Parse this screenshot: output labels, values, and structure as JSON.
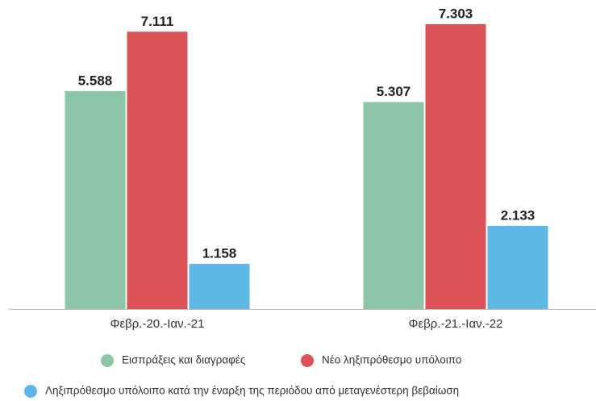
{
  "chart_data": {
    "type": "bar",
    "categories": [
      "Φεβρ.-20.-Ιαν.-21",
      "Φεβρ.-21.-Ιαν.-22"
    ],
    "series": [
      {
        "name": "Εισπράξεις και διαγραφές",
        "color": "#8dc5a8",
        "values": [
          5.588,
          5.307
        ]
      },
      {
        "name": "Νέο ληξιπρόθεσμο υπόλοιπο",
        "color": "#db5257",
        "values": [
          7.111,
          7.303
        ]
      },
      {
        "name": "Ληξιπρόθεσμο υπόλοιπο κατά την έναρξη της περιόδου από μεταγενέστερη βεβαίωση",
        "color": "#5db8e6",
        "values": [
          1.158,
          2.133
        ]
      }
    ]
  }
}
